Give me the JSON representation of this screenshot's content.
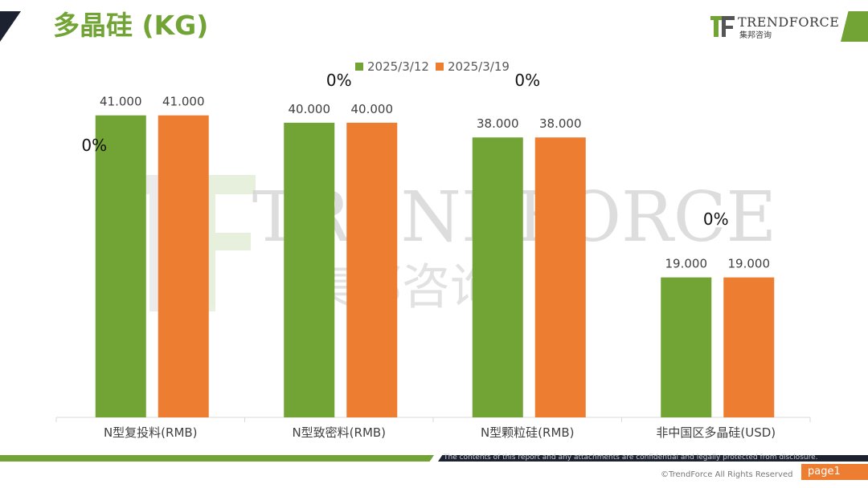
{
  "header": {
    "title": "多晶硅 (KG)",
    "logo_word": "TRENDFORCE",
    "logo_sub": "集邦咨询"
  },
  "watermark": {
    "word": "TRENDFORCE",
    "sub": "集邦咨询"
  },
  "colors": {
    "green": "#72a435",
    "orange": "#ed7d31",
    "dark": "#1c2230"
  },
  "chart_data": {
    "type": "bar",
    "categories": [
      "N型复投料(RMB)",
      "N型致密料(RMB)",
      "N型颗粒硅(RMB)",
      "非中国区多晶硅(USD)"
    ],
    "series": [
      {
        "name": "2025/3/12",
        "color": "#72a435",
        "values": [
          41.0,
          40.0,
          38.0,
          19.0
        ],
        "labels": [
          "41.000",
          "40.000",
          "38.000",
          "19.000"
        ]
      },
      {
        "name": "2025/3/19",
        "color": "#ed7d31",
        "values": [
          41.0,
          40.0,
          38.0,
          19.0
        ],
        "labels": [
          "41.000",
          "40.000",
          "38.000",
          "19.000"
        ]
      }
    ],
    "change_labels": [
      "0%",
      "0%",
      "0%",
      "0%"
    ],
    "ylim": [
      0,
      45
    ],
    "legend": "top-center",
    "grid": false
  },
  "footer": {
    "disclaimer": "The contents of this report and any attachments are confidential and legally protected from disclosure.",
    "copyright": "©TrendForce All Rights Reserved",
    "page": "page1"
  }
}
